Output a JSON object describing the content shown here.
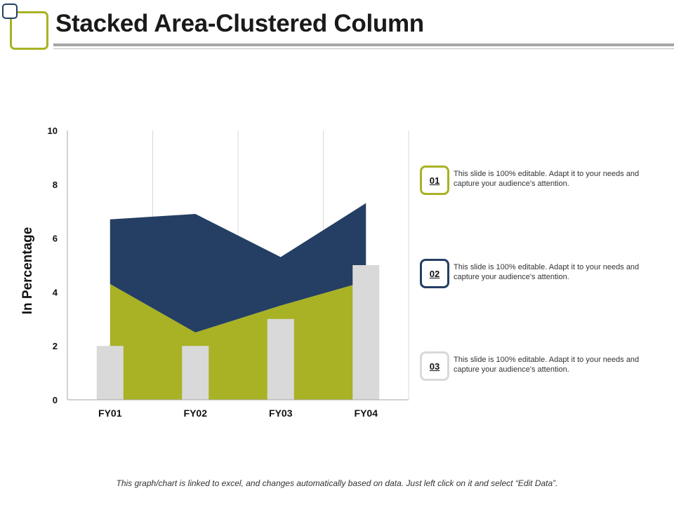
{
  "header": {
    "title": "Stacked Area-Clustered Column"
  },
  "chart_data": {
    "type": "bar",
    "categories": [
      "FY01",
      "FY02",
      "FY03",
      "FY04"
    ],
    "ylabel": "In Percentage",
    "ylim": [
      0,
      10
    ],
    "yticks": [
      0,
      2,
      4,
      6,
      8,
      10
    ],
    "grid": "vertical",
    "series": [
      {
        "kind": "area-stacked",
        "color": "#a8b224",
        "values": [
          4.3,
          2.5,
          3.5,
          4.4
        ]
      },
      {
        "kind": "area-stacked",
        "color": "#243f63",
        "values": [
          2.4,
          4.4,
          1.8,
          2.9
        ]
      },
      {
        "kind": "column",
        "color": "#d9d9d9",
        "values": [
          2,
          2,
          3,
          5
        ]
      }
    ]
  },
  "legend": [
    {
      "badge": "01",
      "text": "This slide is 100% editable. Adapt it to your needs and capture your audience's attention.",
      "color": "#a8b224"
    },
    {
      "badge": "02",
      "text": "This slide is 100% editable. Adapt it to your needs and capture your audience's attention.",
      "color": "#243f63"
    },
    {
      "badge": "03",
      "text": "This slide is 100% editable. Adapt it to your needs and capture your audience's attention.",
      "color": "#d9d9d9"
    }
  ],
  "footer": {
    "note": "This graph/chart is linked to excel, and changes automatically based on data. Just left click on it and select “Edit Data”."
  }
}
